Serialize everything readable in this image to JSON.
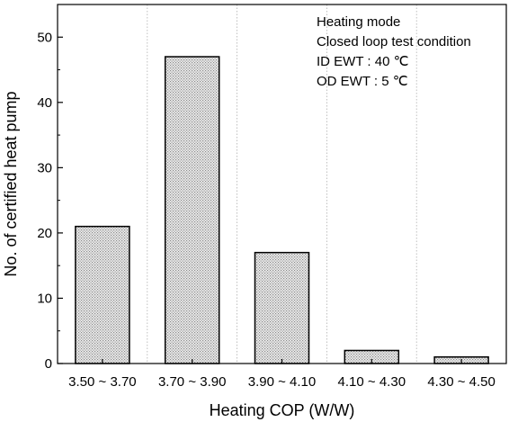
{
  "chart_data": {
    "type": "bar",
    "categories": [
      "3.50 ~ 3.70",
      "3.70 ~ 3.90",
      "3.90 ~ 4.10",
      "4.10 ~ 4.30",
      "4.30 ~ 4.50"
    ],
    "values": [
      21,
      47,
      17,
      2,
      1
    ],
    "xlabel": "Heating COP (W/W)",
    "ylabel": "No. of certified heat pump",
    "ylim": [
      0,
      55
    ],
    "yticks": [
      0,
      10,
      20,
      30,
      40,
      50
    ],
    "grid": "vertical dotted separators between categories",
    "bar_fill": "#d9d9d9",
    "annotations": [
      "Heating mode",
      "Closed loop test condition",
      "ID   EWT :   40 ℃",
      "OD EWT :   5 ℃"
    ]
  }
}
